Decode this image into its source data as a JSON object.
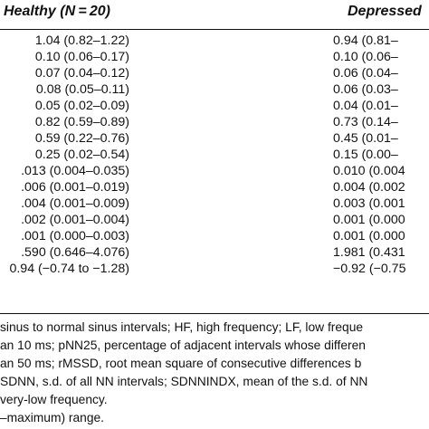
{
  "header": {
    "healthy": "Healthy (N = 20)",
    "depressed": "Depressed"
  },
  "rows": [
    {
      "healthy": "1.04 (0.82–1.22)",
      "depressed": "0.94 (0.81–"
    },
    {
      "healthy": "0.10 (0.06–0.17)",
      "depressed": "0.10 (0.06–"
    },
    {
      "healthy": "0.07 (0.04–0.12)",
      "depressed": "0.06 (0.04–"
    },
    {
      "healthy": "0.08 (0.05–0.11)",
      "depressed": "0.06 (0.03–"
    },
    {
      "healthy": "0.05 (0.02–0.09)",
      "depressed": "0.04 (0.01–"
    },
    {
      "healthy": "0.82 (0.59–0.89)",
      "depressed": "0.73 (0.14–"
    },
    {
      "healthy": "0.59 (0.22–0.76)",
      "depressed": "0.45 (0.01–"
    },
    {
      "healthy": "0.25 (0.02–0.54)",
      "depressed": "0.15 (0.00–"
    },
    {
      "healthy": ".013 (0.004–0.035)",
      "depressed": "0.010 (0.004"
    },
    {
      "healthy": ".006 (0.001–0.019)",
      "depressed": "0.004 (0.002"
    },
    {
      "healthy": ".004 (0.001–0.009)",
      "depressed": "0.003 (0.001"
    },
    {
      "healthy": ".002 (0.001–0.004)",
      "depressed": "0.001 (0.000"
    },
    {
      "healthy": ".001 (0.000–0.003)",
      "depressed": "0.001 (0.000"
    },
    {
      "healthy": ".590 (0.646–4.076)",
      "depressed": "1.981 (0.431"
    },
    {
      "healthy": "0.94 (−0.74 to −1.28)",
      "depressed": "−0.92 (−0.75"
    }
  ],
  "notes": [
    "sinus to normal sinus intervals; HF, high frequency; LF, low freque",
    "an 10 ms; pNN25, percentage of adjacent intervals whose differen",
    "an 50 ms; rMSSD, root mean square of consecutive differences b",
    "SDNN, s.d. of all NN intervals; SDNNINDX, mean of the s.d. of NN",
    "very-low frequency.",
    "–maximum) range."
  ]
}
